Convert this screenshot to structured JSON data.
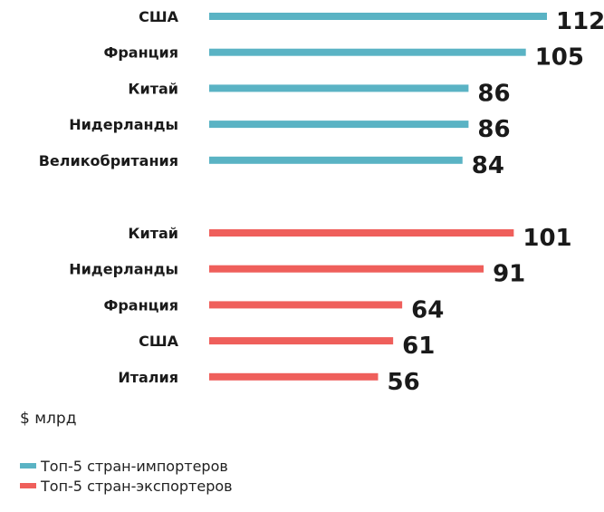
{
  "chart_data": {
    "type": "bar",
    "orientation": "horizontal",
    "unit_label": "$ млрд",
    "xlim": [
      0,
      112
    ],
    "series": [
      {
        "name": "Топ-5 стран-импортеров",
        "color": "#5ab3c4",
        "categories": [
          "США",
          "Франция",
          "Китай",
          "Нидерланды",
          "Великобритания"
        ],
        "values": [
          112,
          105,
          86,
          86,
          84
        ]
      },
      {
        "name": "Топ-5 стран-экспортеров",
        "color": "#ef5f5b",
        "categories": [
          "Китай",
          "Нидерланды",
          "Франция",
          "США",
          "Италия"
        ],
        "values": [
          101,
          91,
          64,
          61,
          56
        ]
      }
    ],
    "legend_position": "bottom-left"
  }
}
